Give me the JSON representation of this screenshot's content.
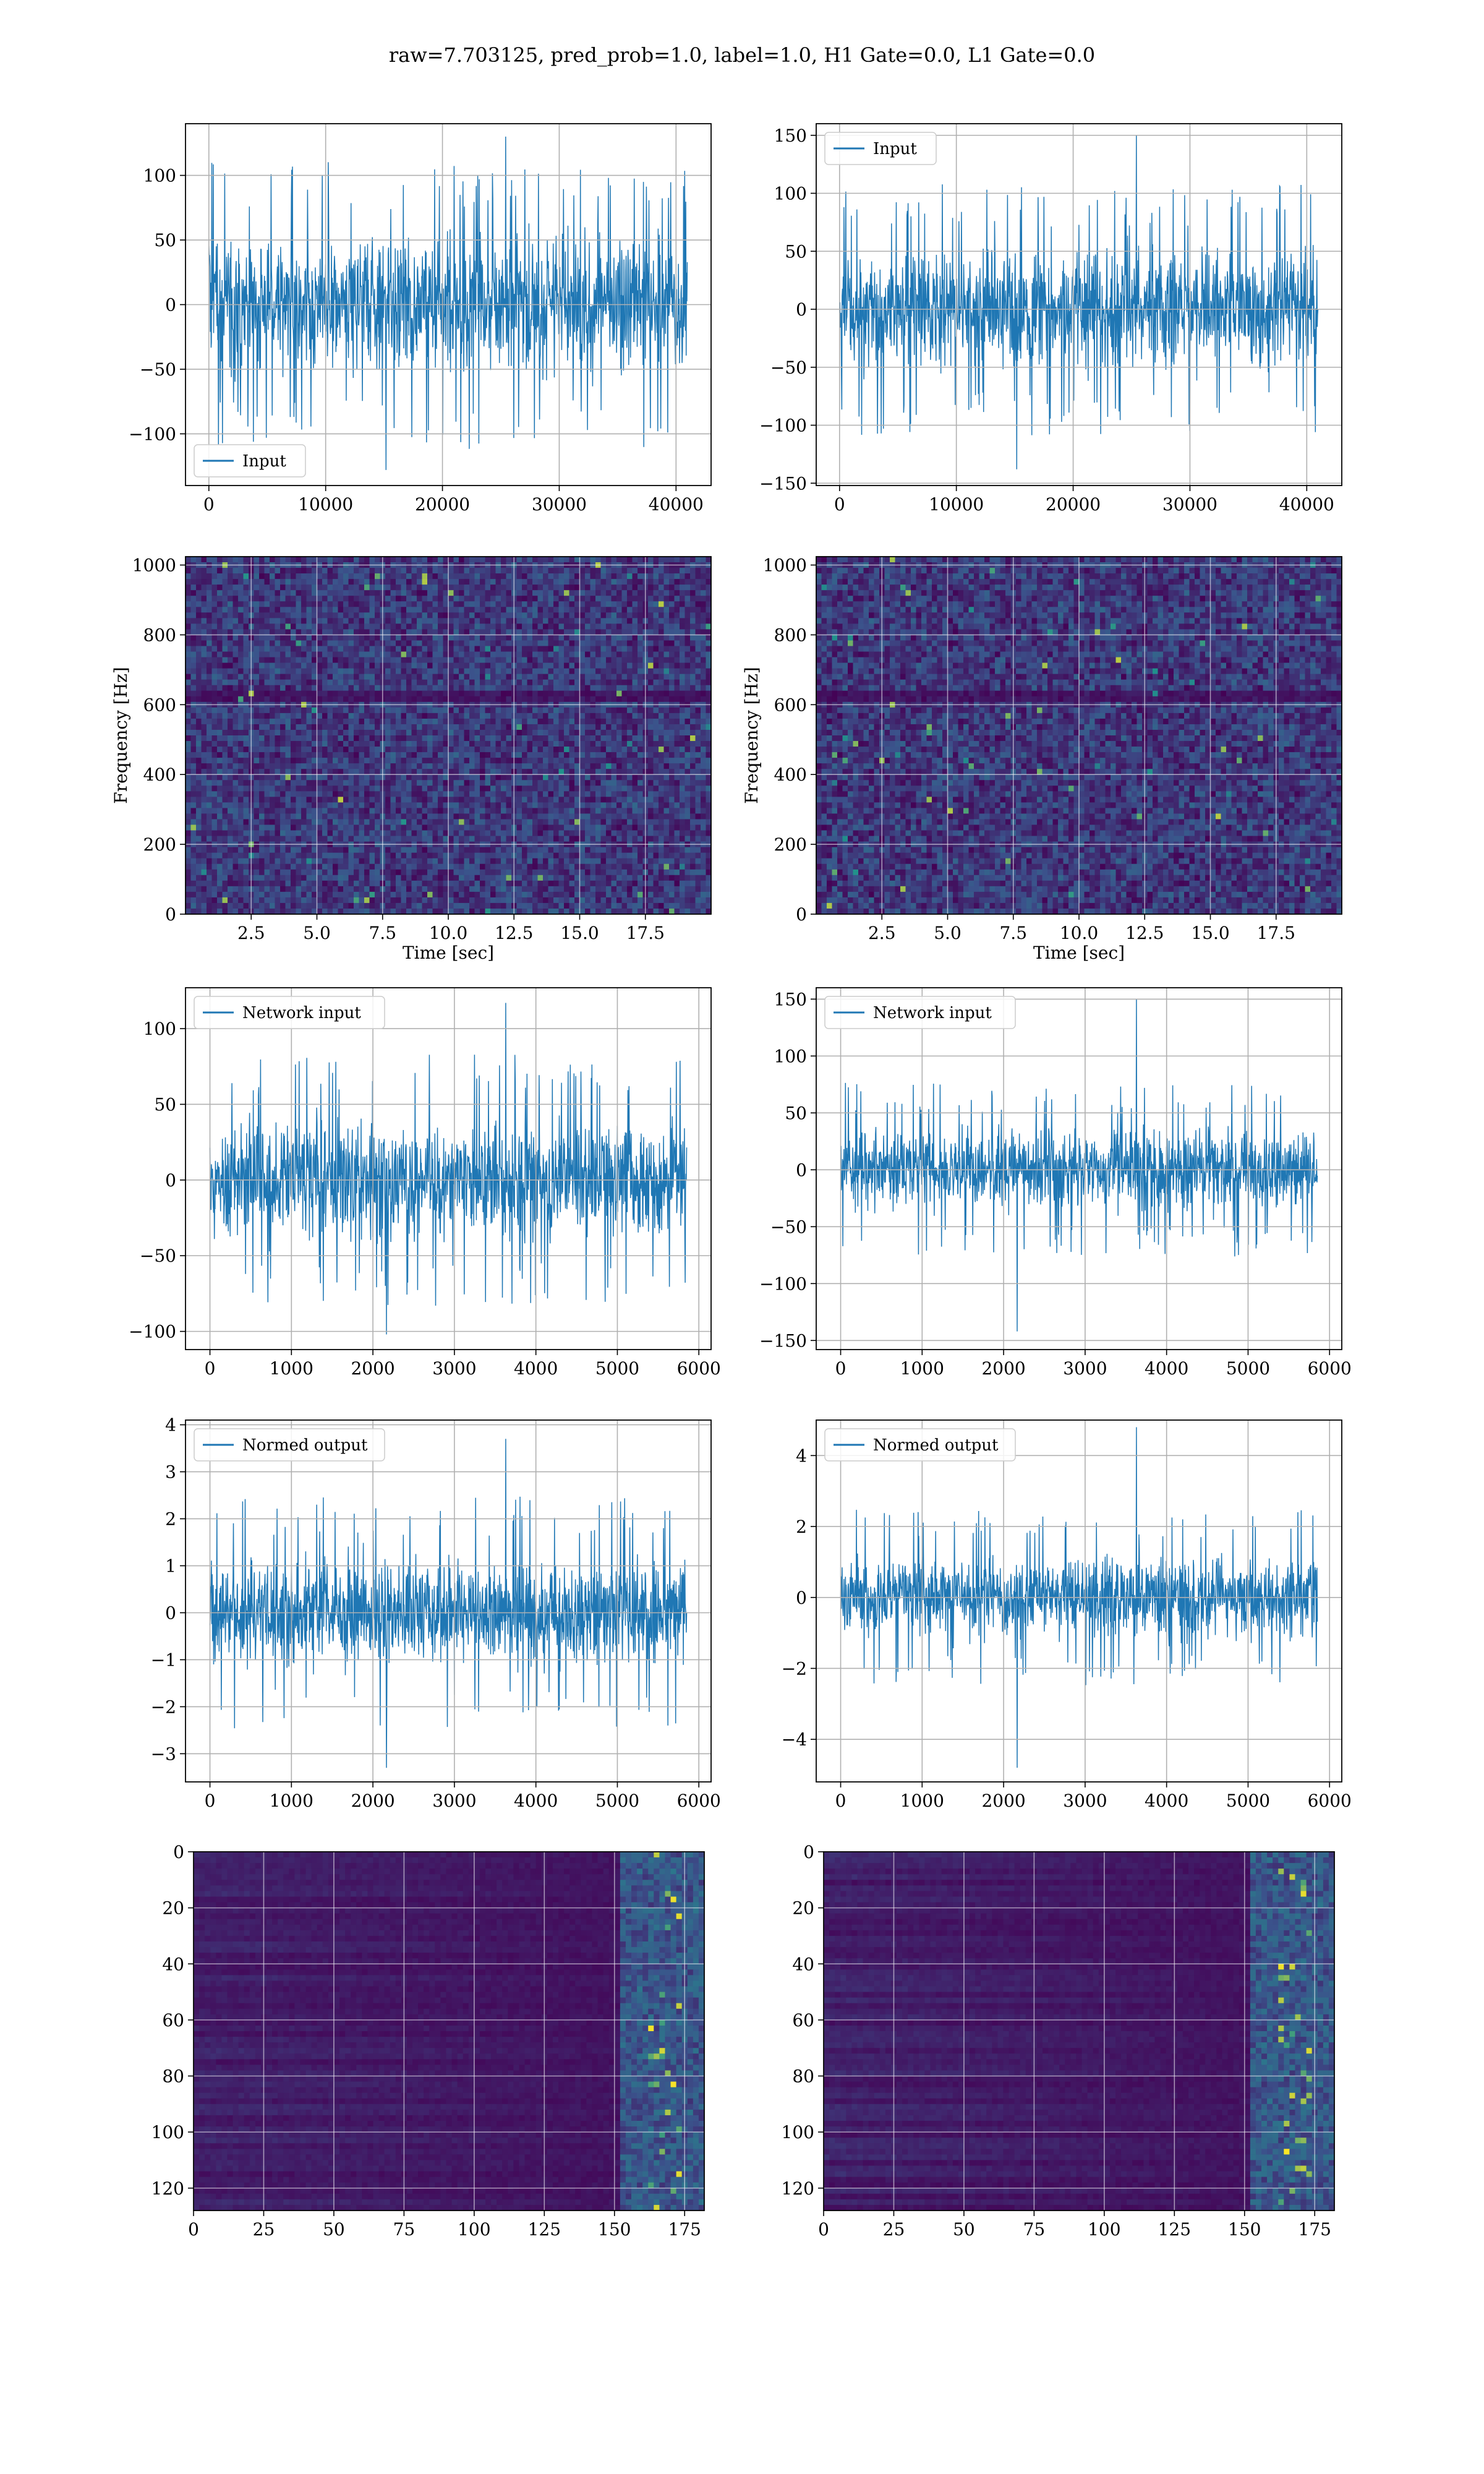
{
  "figure": {
    "title": "raw=7.703125, pred_prob=1.0, label=1.0, H1 Gate=0.0, L1 Gate=0.0"
  },
  "colors": {
    "line": "#1f77b4",
    "grid": "#b0b0b0",
    "heat_low": "#440154",
    "heat_mid": "#21918c",
    "heat_high": "#fde725"
  },
  "chart_data": [
    {
      "id": "p1",
      "type": "line",
      "legend": "Input",
      "legend_loc": "lower-left",
      "xlim": [
        -2000,
        43000
      ],
      "ylim": [
        -140,
        140
      ],
      "xticks": [
        0,
        10000,
        20000,
        30000,
        40000
      ],
      "xtick_labels": [
        "0",
        "10000",
        "20000",
        "30000",
        "40000"
      ],
      "yticks": [
        -100,
        -50,
        0,
        50,
        100
      ],
      "ytick_labels": [
        "−100",
        "−50",
        "0",
        "50",
        "100"
      ],
      "x_range": [
        0,
        40960
      ],
      "band": 70,
      "spike_max": 130,
      "spike_min": -128,
      "seed": 11,
      "xlabel": "",
      "ylabel": "",
      "grid": true
    },
    {
      "id": "p2",
      "type": "line",
      "legend": "Input",
      "legend_loc": "upper-left",
      "xlim": [
        -2000,
        43000
      ],
      "ylim": [
        -152,
        160
      ],
      "xticks": [
        0,
        10000,
        20000,
        30000,
        40000
      ],
      "xtick_labels": [
        "0",
        "10000",
        "20000",
        "30000",
        "40000"
      ],
      "yticks": [
        -150,
        -100,
        -50,
        0,
        50,
        100,
        150
      ],
      "ytick_labels": [
        "−150",
        "−100",
        "−50",
        "0",
        "50",
        "100",
        "150"
      ],
      "x_range": [
        0,
        40960
      ],
      "band": 68,
      "spike_max": 150,
      "spike_min": -138,
      "seed": 23,
      "xlabel": "",
      "ylabel": "",
      "grid": true
    },
    {
      "id": "p3",
      "type": "heatmap",
      "subtype": "spectrogram",
      "xlim": [
        0,
        20
      ],
      "ylim": [
        0,
        1024
      ],
      "xticks": [
        2.5,
        5.0,
        7.5,
        10.0,
        12.5,
        15.0,
        17.5
      ],
      "xtick_labels": [
        "2.5",
        "5.0",
        "7.5",
        "10.0",
        "12.5",
        "15.0",
        "17.5"
      ],
      "yticks": [
        0,
        200,
        400,
        600,
        800,
        1000
      ],
      "ytick_labels": [
        "0",
        "200",
        "400",
        "600",
        "800",
        "1000"
      ],
      "xlabel": "Time [sec]",
      "ylabel": "Frequency [Hz]",
      "grid": true,
      "seed": 31
    },
    {
      "id": "p4",
      "type": "heatmap",
      "subtype": "spectrogram",
      "xlim": [
        0,
        20
      ],
      "ylim": [
        0,
        1024
      ],
      "xticks": [
        2.5,
        5.0,
        7.5,
        10.0,
        12.5,
        15.0,
        17.5
      ],
      "xtick_labels": [
        "2.5",
        "5.0",
        "7.5",
        "10.0",
        "12.5",
        "15.0",
        "17.5"
      ],
      "yticks": [
        0,
        200,
        400,
        600,
        800,
        1000
      ],
      "ytick_labels": [
        "0",
        "200",
        "400",
        "600",
        "800",
        "1000"
      ],
      "xlabel": "Time [sec]",
      "ylabel": "Frequency [Hz]",
      "grid": true,
      "seed": 47
    },
    {
      "id": "p5",
      "type": "line",
      "legend": "Network input",
      "legend_loc": "upper-left",
      "xlim": [
        -300,
        6150
      ],
      "ylim": [
        -112,
        127
      ],
      "xticks": [
        0,
        1000,
        2000,
        3000,
        4000,
        5000,
        6000
      ],
      "xtick_labels": [
        "0",
        "1000",
        "2000",
        "3000",
        "4000",
        "5000",
        "6000"
      ],
      "yticks": [
        -100,
        -50,
        0,
        50,
        100
      ],
      "ytick_labels": [
        "−100",
        "−50",
        "0",
        "50",
        "100"
      ],
      "x_range": [
        0,
        5850
      ],
      "band": 52,
      "spike_max": 117,
      "spike_min": -102,
      "seed": 53,
      "xlabel": "",
      "ylabel": "",
      "grid": true
    },
    {
      "id": "p6",
      "type": "line",
      "legend": "Network input",
      "legend_loc": "upper-left",
      "xlim": [
        -300,
        6150
      ],
      "ylim": [
        -158,
        160
      ],
      "xticks": [
        0,
        1000,
        2000,
        3000,
        4000,
        5000,
        6000
      ],
      "xtick_labels": [
        "0",
        "1000",
        "2000",
        "3000",
        "4000",
        "5000",
        "6000"
      ],
      "yticks": [
        -150,
        -100,
        -50,
        0,
        50,
        100,
        150
      ],
      "ytick_labels": [
        "−150",
        "−100",
        "−50",
        "0",
        "50",
        "100",
        "150"
      ],
      "x_range": [
        0,
        5850
      ],
      "band": 48,
      "spike_max": 150,
      "spike_min": -142,
      "seed": 61,
      "xlabel": "",
      "ylabel": "",
      "grid": true
    },
    {
      "id": "p7",
      "type": "line",
      "legend": "Normed output",
      "legend_loc": "upper-left",
      "xlim": [
        -300,
        6150
      ],
      "ylim": [
        -3.6,
        4.1
      ],
      "xticks": [
        0,
        1000,
        2000,
        3000,
        4000,
        5000,
        6000
      ],
      "xtick_labels": [
        "0",
        "1000",
        "2000",
        "3000",
        "4000",
        "5000",
        "6000"
      ],
      "yticks": [
        -3,
        -2,
        -1,
        0,
        1,
        2,
        3,
        4
      ],
      "ytick_labels": [
        "−3",
        "−2",
        "−1",
        "0",
        "1",
        "2",
        "3",
        "4"
      ],
      "x_range": [
        0,
        5850
      ],
      "band": 1.55,
      "spike_max": 3.7,
      "spike_min": -3.3,
      "seed": 71,
      "xlabel": "",
      "ylabel": "",
      "grid": true
    },
    {
      "id": "p8",
      "type": "line",
      "legend": "Normed output",
      "legend_loc": "upper-left",
      "xlim": [
        -300,
        6150
      ],
      "ylim": [
        -5.2,
        5.0
      ],
      "xticks": [
        0,
        1000,
        2000,
        3000,
        4000,
        5000,
        6000
      ],
      "xtick_labels": [
        "0",
        "1000",
        "2000",
        "3000",
        "4000",
        "5000",
        "6000"
      ],
      "yticks": [
        -4,
        -2,
        0,
        2,
        4
      ],
      "ytick_labels": [
        "−4",
        "−2",
        "0",
        "2",
        "4"
      ],
      "x_range": [
        0,
        5850
      ],
      "band": 1.55,
      "spike_max": 4.8,
      "spike_min": -4.8,
      "seed": 83,
      "xlabel": "",
      "ylabel": "",
      "grid": true
    },
    {
      "id": "p9",
      "type": "heatmap",
      "subtype": "feature-map",
      "xlim": [
        0,
        182
      ],
      "ylim": [
        128,
        0
      ],
      "xticks": [
        0,
        25,
        50,
        75,
        100,
        125,
        150,
        175
      ],
      "xtick_labels": [
        "0",
        "25",
        "50",
        "75",
        "100",
        "125",
        "150",
        "175"
      ],
      "yticks": [
        0,
        20,
        40,
        60,
        80,
        100,
        120
      ],
      "ytick_labels": [
        "0",
        "20",
        "40",
        "60",
        "80",
        "100",
        "120"
      ],
      "xlabel": "",
      "ylabel": "",
      "grid": true,
      "seed": 97
    },
    {
      "id": "p10",
      "type": "heatmap",
      "subtype": "feature-map",
      "xlim": [
        0,
        182
      ],
      "ylim": [
        128,
        0
      ],
      "xticks": [
        0,
        25,
        50,
        75,
        100,
        125,
        150,
        175
      ],
      "xtick_labels": [
        "0",
        "25",
        "50",
        "75",
        "100",
        "125",
        "150",
        "175"
      ],
      "yticks": [
        0,
        20,
        40,
        60,
        80,
        100,
        120
      ],
      "ytick_labels": [
        "0",
        "20",
        "40",
        "60",
        "80",
        "100",
        "120"
      ],
      "xlabel": "",
      "ylabel": "",
      "grid": true,
      "seed": 109
    }
  ]
}
